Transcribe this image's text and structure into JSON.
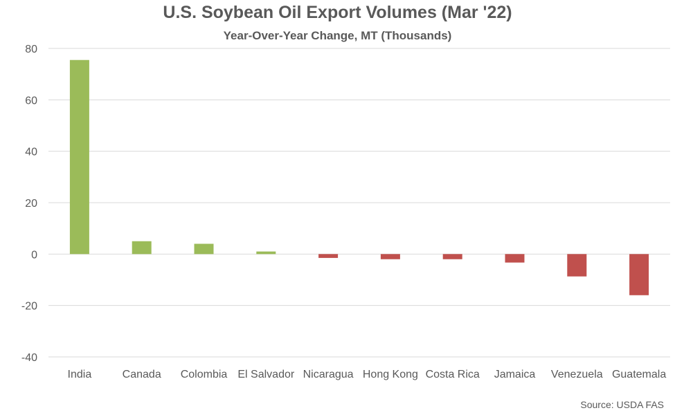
{
  "chart_data": {
    "type": "bar",
    "title": "U.S. Soybean Oil Export Volumes (Mar '22)",
    "subtitle": "Year-Over-Year Change, MT (Thousands)",
    "xlabel": "",
    "ylabel": "",
    "categories": [
      "India",
      "Canada",
      "Colombia",
      "El Salvador",
      "Nicaragua",
      "Hong Kong",
      "Costa Rica",
      "Jamaica",
      "Venezuela",
      "Guatemala"
    ],
    "values": [
      75.5,
      5.0,
      4.0,
      1.0,
      -1.5,
      -2.0,
      -2.0,
      -3.3,
      -8.7,
      -16.0
    ],
    "ylim": [
      -40,
      80
    ],
    "yticks": [
      -40,
      -20,
      0,
      20,
      40,
      60,
      80
    ],
    "grid": true,
    "colors": {
      "positive": "#9BBB59",
      "negative": "#C0504D",
      "grid": "#D9D9D9"
    }
  },
  "source": "Source: USDA FAS"
}
